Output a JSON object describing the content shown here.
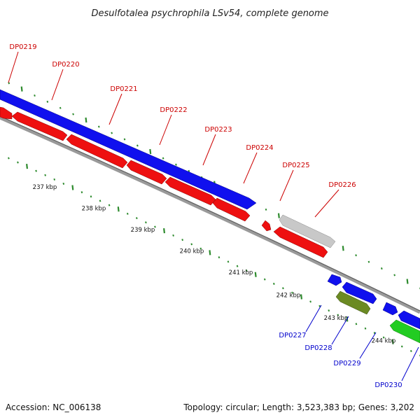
{
  "title": "Desulfotalea psychrophila LSv54, complete genome",
  "footer": {
    "accession": "Accession: NC_006138",
    "summary": "Topology: circular; Length: 3,523,383 bp; Genes: 3,202"
  },
  "colors": {
    "forward_cds": "#1010ee",
    "reverse_cds": "#ee1010",
    "rna": "#c8c8c8",
    "olive_feature": "#6b8a23",
    "green_feature": "#22cc22",
    "backbone": "#888888",
    "tick_dots": "#2e8b2e",
    "label_red": "#cc0000",
    "label_blue": "#0000cc"
  },
  "tick_labels": [
    {
      "kbp": 237,
      "text": "237 kbp"
    },
    {
      "kbp": 238,
      "text": "238 kbp"
    },
    {
      "kbp": 239,
      "text": "239 kbp"
    },
    {
      "kbp": 240,
      "text": "240 kbp"
    },
    {
      "kbp": 241,
      "text": "241 kbp"
    },
    {
      "kbp": 242,
      "text": "242 kbp"
    },
    {
      "kbp": 243,
      "text": "243 kbp"
    },
    {
      "kbp": 244,
      "text": "244 kbp"
    }
  ],
  "gene_labels": [
    {
      "id": "DP0219",
      "strand": "reverse"
    },
    {
      "id": "DP0220",
      "strand": "reverse"
    },
    {
      "id": "DP0221",
      "strand": "reverse"
    },
    {
      "id": "DP0222",
      "strand": "reverse"
    },
    {
      "id": "DP0223",
      "strand": "reverse"
    },
    {
      "id": "DP0224",
      "strand": "reverse"
    },
    {
      "id": "DP0225",
      "strand": "reverse"
    },
    {
      "id": "DP0226",
      "strand": "reverse"
    },
    {
      "id": "DP0227",
      "strand": "forward"
    },
    {
      "id": "DP0228",
      "strand": "forward"
    },
    {
      "id": "DP0229",
      "strand": "forward"
    },
    {
      "id": "DP0230",
      "strand": "forward"
    }
  ]
}
